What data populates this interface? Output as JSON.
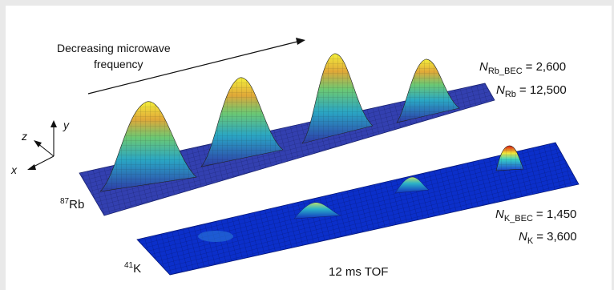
{
  "annotation": {
    "line1": "Decreasing microwave",
    "line2": "frequency"
  },
  "axes": {
    "z": "z",
    "y": "y",
    "x": "x"
  },
  "rb": {
    "mass": "87",
    "element": "Rb",
    "stats": {
      "n_bec_sub": "Rb_BEC",
      "n_bec_value": "= 2,600",
      "n_sub": "Rb",
      "n_value": "= 12,500"
    }
  },
  "k": {
    "mass": "41",
    "element": "K",
    "stats": {
      "n_bec_sub": "K_BEC",
      "n_bec_value": "= 1,450",
      "n_sub": "K",
      "n_value": "= 3,600"
    }
  },
  "caption": "12 ms TOF",
  "symbol_N": "N",
  "colors": {
    "rb_base": "#2d3aa8",
    "rb_peak": "#f2ee3a",
    "k_base": "#0a2ec8",
    "k_peak": "#e81e10"
  }
}
